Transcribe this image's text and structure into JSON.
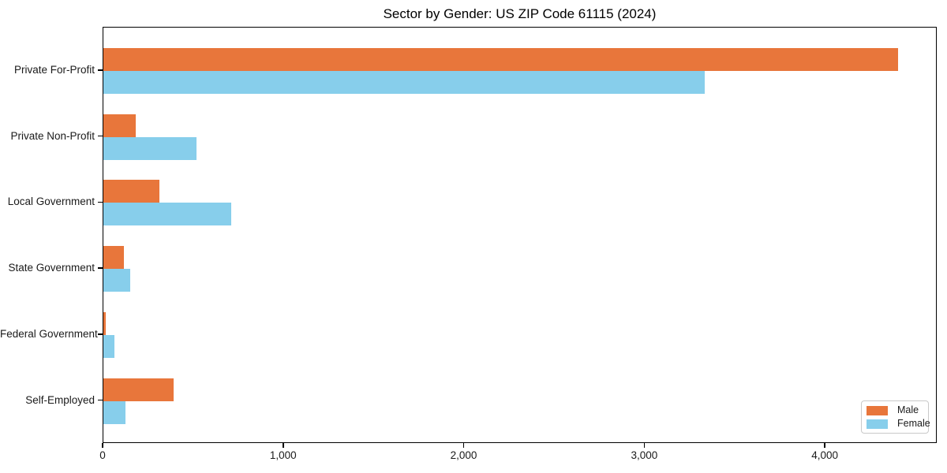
{
  "chart_data": {
    "type": "bar",
    "orientation": "horizontal",
    "title": "Sector by Gender: US ZIP Code 61115 (2024)",
    "categories": [
      "Private For-Profit",
      "Private Non-Profit",
      "Local Government",
      "State Government",
      "Federal Government",
      "Self-Employed"
    ],
    "series": [
      {
        "name": "Male",
        "color": "#e8763b",
        "values": [
          4400,
          180,
          310,
          115,
          15,
          390
        ]
      },
      {
        "name": "Female",
        "color": "#87ceeb",
        "values": [
          3330,
          515,
          710,
          150,
          60,
          120
        ]
      }
    ],
    "xlabel": "",
    "ylabel": "",
    "xlim": [
      0,
      4620
    ],
    "xticks": {
      "values": [
        0,
        1000,
        2000,
        3000,
        4000
      ],
      "labels": [
        "0",
        "1,000",
        "2,000",
        "3,000",
        "4,000"
      ]
    },
    "grid": false,
    "legend": {
      "position": "lower-right",
      "entries": [
        "Male",
        "Female"
      ]
    },
    "colors": {
      "axis": "#000000",
      "text": "#1a1a1a",
      "legend_border": "#c9c9c9",
      "background": "#ffffff"
    }
  }
}
